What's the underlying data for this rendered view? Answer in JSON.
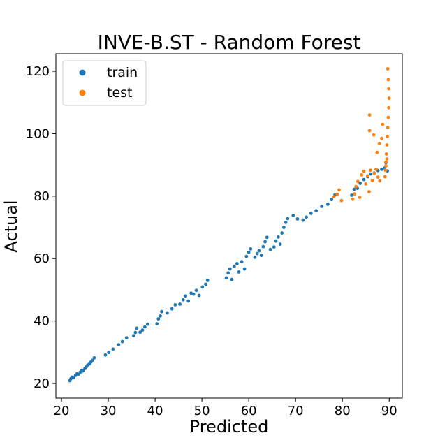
{
  "chart_data": {
    "type": "scatter",
    "title": "INVE-B.ST - Random Forest",
    "xlabel": "Predicted",
    "ylabel": "Actual",
    "xlim": [
      18.8,
      92.8
    ],
    "ylim": [
      15.3,
      125.6
    ],
    "xticks": [
      20,
      30,
      40,
      50,
      60,
      70,
      80,
      90
    ],
    "yticks": [
      20,
      40,
      60,
      80,
      100,
      120
    ],
    "grid": false,
    "legend_position": "top-left",
    "series": [
      {
        "name": "train",
        "color": "#1f77b4",
        "points": [
          [
            21.8,
            20.9
          ],
          [
            22.0,
            21.5
          ],
          [
            22.3,
            22.0
          ],
          [
            22.6,
            21.8
          ],
          [
            23.0,
            22.6
          ],
          [
            23.3,
            23.1
          ],
          [
            23.6,
            22.9
          ],
          [
            24.0,
            23.6
          ],
          [
            24.3,
            24.2
          ],
          [
            24.6,
            24.0
          ],
          [
            25.0,
            24.8
          ],
          [
            25.3,
            25.3
          ],
          [
            25.6,
            25.9
          ],
          [
            26.0,
            26.3
          ],
          [
            26.3,
            26.9
          ],
          [
            26.6,
            27.4
          ],
          [
            27.0,
            28.2
          ],
          [
            29.4,
            29.1
          ],
          [
            30.1,
            29.9
          ],
          [
            31.0,
            31.0
          ],
          [
            32.2,
            32.4
          ],
          [
            33.0,
            33.4
          ],
          [
            33.9,
            34.6
          ],
          [
            35.4,
            35.3
          ],
          [
            35.8,
            36.3
          ],
          [
            36.1,
            37.7
          ],
          [
            36.8,
            36.4
          ],
          [
            37.3,
            37.1
          ],
          [
            37.8,
            38.1
          ],
          [
            38.4,
            39.0
          ],
          [
            40.4,
            39.1
          ],
          [
            40.7,
            40.7
          ],
          [
            41.1,
            41.6
          ],
          [
            41.4,
            43.0
          ],
          [
            42.6,
            42.6
          ],
          [
            43.6,
            43.9
          ],
          [
            44.3,
            45.2
          ],
          [
            45.3,
            45.4
          ],
          [
            46.0,
            46.8
          ],
          [
            46.5,
            48.0
          ],
          [
            47.1,
            46.4
          ],
          [
            47.7,
            48.9
          ],
          [
            48.2,
            48.6
          ],
          [
            48.8,
            49.8
          ],
          [
            49.4,
            48.2
          ],
          [
            50.1,
            50.9
          ],
          [
            50.8,
            51.8
          ],
          [
            51.2,
            53.0
          ],
          [
            55.2,
            53.8
          ],
          [
            55.6,
            55.4
          ],
          [
            56.0,
            56.7
          ],
          [
            56.4,
            53.3
          ],
          [
            56.9,
            57.5
          ],
          [
            57.5,
            58.4
          ],
          [
            57.9,
            55.7
          ],
          [
            58.5,
            59.0
          ],
          [
            59.1,
            56.7
          ],
          [
            59.5,
            60.7
          ],
          [
            60.0,
            62.0
          ],
          [
            60.4,
            63.1
          ],
          [
            61.3,
            60.4
          ],
          [
            61.8,
            61.6
          ],
          [
            62.2,
            62.5
          ],
          [
            62.7,
            61.0
          ],
          [
            63.1,
            63.8
          ],
          [
            63.5,
            65.4
          ],
          [
            63.9,
            66.8
          ],
          [
            64.6,
            62.9
          ],
          [
            65.4,
            63.7
          ],
          [
            65.8,
            65.6
          ],
          [
            66.3,
            66.9
          ],
          [
            66.7,
            64.6
          ],
          [
            67.1,
            68.2
          ],
          [
            67.5,
            70.0
          ],
          [
            67.9,
            71.6
          ],
          [
            68.3,
            72.8
          ],
          [
            69.5,
            73.8
          ],
          [
            70.4,
            72.7
          ],
          [
            71.6,
            72.3
          ],
          [
            72.3,
            73.3
          ],
          [
            73.3,
            74.5
          ],
          [
            74.4,
            75.3
          ],
          [
            75.6,
            76.7
          ],
          [
            76.9,
            77.4
          ],
          [
            77.7,
            78.9
          ],
          [
            78.4,
            80.4
          ],
          [
            82.0,
            80.3
          ],
          [
            82.5,
            82.2
          ],
          [
            83.2,
            82.5
          ],
          [
            83.8,
            84.1
          ],
          [
            84.6,
            85.3
          ],
          [
            85.4,
            86.2
          ],
          [
            86.0,
            87.1
          ],
          [
            86.8,
            87.4
          ],
          [
            87.6,
            88.2
          ],
          [
            88.4,
            88.6
          ],
          [
            89.0,
            89.0
          ],
          [
            89.3,
            90.7
          ],
          [
            89.6,
            88.1
          ]
        ]
      },
      {
        "name": "test",
        "color": "#ff7f0e",
        "points": [
          [
            78.2,
            79.8
          ],
          [
            78.9,
            80.6
          ],
          [
            79.3,
            82.0
          ],
          [
            79.8,
            78.6
          ],
          [
            82.2,
            79.0
          ],
          [
            82.6,
            80.7
          ],
          [
            82.9,
            83.1
          ],
          [
            83.3,
            84.7
          ],
          [
            83.7,
            79.6
          ],
          [
            84.1,
            86.8
          ],
          [
            84.6,
            88.0
          ],
          [
            85.0,
            83.9
          ],
          [
            85.4,
            86.5
          ],
          [
            85.7,
            81.4
          ],
          [
            86.0,
            88.3
          ],
          [
            86.4,
            85.0
          ],
          [
            86.8,
            87.3
          ],
          [
            87.2,
            88.6
          ],
          [
            87.6,
            86.1
          ],
          [
            88.0,
            84.9
          ],
          [
            85.8,
            101.0
          ],
          [
            85.8,
            106.0
          ],
          [
            86.7,
            99.6
          ],
          [
            87.4,
            94.0
          ],
          [
            87.9,
            96.8
          ],
          [
            88.4,
            98.5
          ],
          [
            88.6,
            103.0
          ],
          [
            89.1,
            86.2
          ],
          [
            89.2,
            88.3
          ],
          [
            89.3,
            90.9
          ],
          [
            89.4,
            93.5
          ],
          [
            89.5,
            96.4
          ],
          [
            89.6,
            99.1
          ],
          [
            89.7,
            102.0
          ],
          [
            89.8,
            105.2
          ],
          [
            89.9,
            108.3
          ],
          [
            90.0,
            111.4
          ],
          [
            89.9,
            114.4
          ],
          [
            89.8,
            117.3
          ],
          [
            89.7,
            120.8
          ],
          [
            89.5,
            91.9
          ],
          [
            89.3,
            89.7
          ]
        ]
      }
    ]
  }
}
